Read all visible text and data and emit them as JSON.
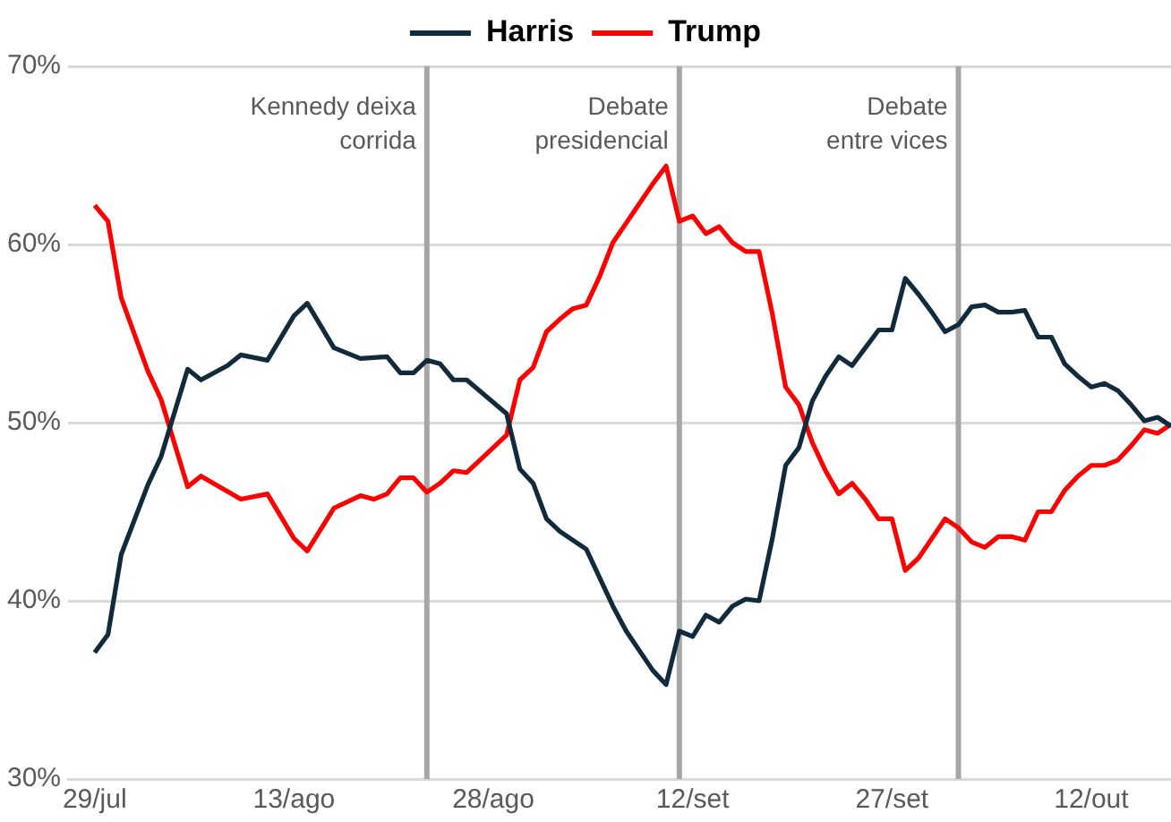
{
  "chart_data": {
    "type": "line",
    "legend": "top",
    "grid": "y",
    "marker": "none",
    "line_style": "solid",
    "xlim": [
      "--07-27",
      "--10-18"
    ],
    "xticks": [
      {
        "value": "--07-29",
        "label": "29/jul"
      },
      {
        "value": "--08-13",
        "label": "13/ago"
      },
      {
        "value": "--08-28",
        "label": "28/ago"
      },
      {
        "value": "--09-12",
        "label": "12/set"
      },
      {
        "value": "--09-27",
        "label": "27/set"
      },
      {
        "value": "--10-12",
        "label": "12/out"
      }
    ],
    "ylim": [
      30,
      70
    ],
    "yticks": [
      {
        "value": 30,
        "label": "30%"
      },
      {
        "value": 40,
        "label": "40%"
      },
      {
        "value": 50,
        "label": "50%"
      },
      {
        "value": 60,
        "label": "60%"
      },
      {
        "value": 70,
        "label": "70%"
      }
    ],
    "ref_lines": [
      {
        "axis": "x",
        "value": "--08-23",
        "label": "Kennedy deixa\ncorrida",
        "color": "#a6a6a6"
      },
      {
        "axis": "x",
        "value": "--09-11",
        "label": "Debate\npresidencial",
        "color": "#a6a6a6"
      },
      {
        "axis": "x",
        "value": "--10-02",
        "label": "Debate\nentre vices",
        "color": "#a6a6a6"
      }
    ],
    "series": [
      {
        "name": "Harris",
        "color": "#112b3c",
        "x": [
          "--07-29",
          "--07-30",
          "--07-31",
          "--08-02",
          "--08-03",
          "--08-05",
          "--08-06",
          "--08-08",
          "--08-09",
          "--08-11",
          "--08-13",
          "--08-14",
          "--08-16",
          "--08-18",
          "--08-20",
          "--08-21",
          "--08-22",
          "--08-23",
          "--08-24",
          "--08-25",
          "--08-26",
          "--08-29",
          "--08-30",
          "--08-31",
          "--09-01",
          "--09-02",
          "--09-03",
          "--09-04",
          "--09-06",
          "--09-07",
          "--09-09",
          "--09-10",
          "--09-11",
          "--09-12",
          "--09-13",
          "--09-14",
          "--09-15",
          "--09-16",
          "--09-17",
          "--09-18",
          "--09-19",
          "--09-20",
          "--09-21",
          "--09-22",
          "--09-23",
          "--09-24",
          "--09-25",
          "--09-26",
          "--09-27",
          "--09-28",
          "--09-29",
          "--09-30",
          "--10-01",
          "--10-02",
          "--10-03",
          "--10-04",
          "--10-05",
          "--10-06",
          "--10-07",
          "--10-08",
          "--10-09",
          "--10-10",
          "--10-11",
          "--10-12",
          "--10-13",
          "--10-14",
          "--10-15",
          "--10-16",
          "--10-17",
          "--10-18"
        ],
        "values": [
          37.1,
          38.1,
          42.6,
          46.5,
          48.1,
          53.0,
          52.4,
          53.2,
          53.8,
          53.5,
          56.0,
          56.7,
          54.2,
          53.6,
          53.7,
          52.8,
          52.8,
          53.5,
          53.3,
          52.4,
          52.4,
          50.5,
          47.4,
          46.6,
          44.6,
          43.9,
          43.4,
          42.9,
          39.7,
          38.3,
          36.1,
          35.3,
          38.3,
          38.0,
          39.2,
          38.8,
          39.7,
          40.1,
          40.0,
          43.5,
          47.6,
          48.6,
          51.2,
          52.6,
          53.7,
          53.2,
          54.2,
          55.2,
          55.2,
          58.1,
          57.2,
          56.2,
          55.1,
          55.5,
          56.5,
          56.6,
          56.2,
          56.2,
          56.3,
          54.8,
          54.8,
          53.3,
          52.6,
          52.0,
          52.2,
          51.8,
          51.0,
          50.1,
          50.3,
          49.8
        ]
      },
      {
        "name": "Trump",
        "color": "#ff0000",
        "x": [
          "--07-29",
          "--07-30",
          "--07-31",
          "--08-02",
          "--08-03",
          "--08-05",
          "--08-06",
          "--08-09",
          "--08-11",
          "--08-13",
          "--08-14",
          "--08-16",
          "--08-18",
          "--08-19",
          "--08-20",
          "--08-21",
          "--08-22",
          "--08-23",
          "--08-24",
          "--08-25",
          "--08-26",
          "--08-29",
          "--08-30",
          "--08-31",
          "--09-01",
          "--09-02",
          "--09-03",
          "--09-04",
          "--09-05",
          "--09-06",
          "--09-07",
          "--09-08",
          "--09-09",
          "--09-10",
          "--09-11",
          "--09-12",
          "--09-13",
          "--09-14",
          "--09-15",
          "--09-16",
          "--09-17",
          "--09-18",
          "--09-19",
          "--09-20",
          "--09-21",
          "--09-22",
          "--09-23",
          "--09-24",
          "--09-25",
          "--09-26",
          "--09-27",
          "--09-28",
          "--09-29",
          "--09-30",
          "--10-01",
          "--10-02",
          "--10-03",
          "--10-04",
          "--10-05",
          "--10-06",
          "--10-07",
          "--10-08",
          "--10-09",
          "--10-10",
          "--10-11",
          "--10-12",
          "--10-13",
          "--10-14",
          "--10-15",
          "--10-16",
          "--10-17",
          "--10-18"
        ],
        "values": [
          62.2,
          61.3,
          57.0,
          52.9,
          51.3,
          46.4,
          47.0,
          45.7,
          46.0,
          43.5,
          42.8,
          45.2,
          45.9,
          45.7,
          46.0,
          46.9,
          46.9,
          46.1,
          46.6,
          47.3,
          47.2,
          49.3,
          52.4,
          53.1,
          55.1,
          55.8,
          56.4,
          56.6,
          58.2,
          60.1,
          61.2,
          62.3,
          63.4,
          64.4,
          61.3,
          61.6,
          60.6,
          61.0,
          60.1,
          59.6,
          59.6,
          56.1,
          52.0,
          51.0,
          48.9,
          47.3,
          46.0,
          46.6,
          45.7,
          44.6,
          44.6,
          41.7,
          42.4,
          43.5,
          44.6,
          44.1,
          43.3,
          43.0,
          43.6,
          43.6,
          43.4,
          45.0,
          45.0,
          46.2,
          47.0,
          47.6,
          47.6,
          47.9,
          48.7,
          49.6,
          49.4,
          49.9
        ]
      }
    ]
  }
}
